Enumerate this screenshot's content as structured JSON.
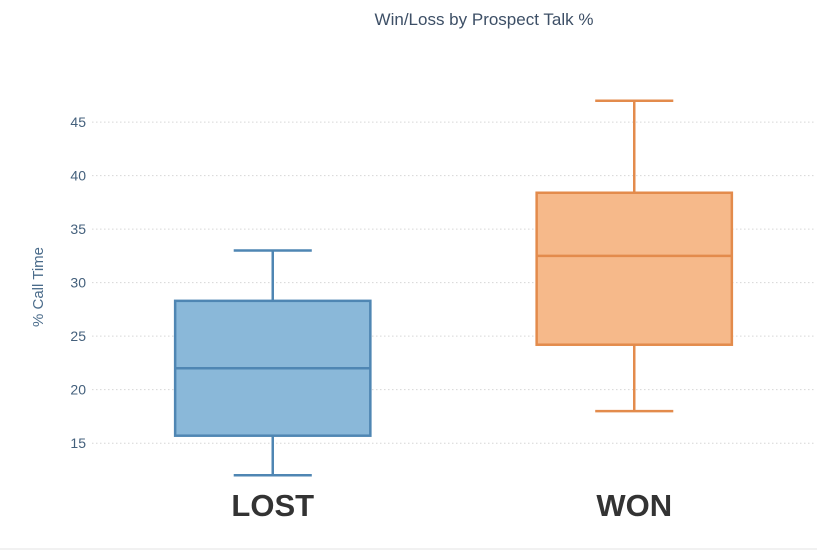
{
  "chart_data": {
    "type": "box",
    "title": "Win/Loss by Prospect Talk %",
    "xlabel": "",
    "ylabel": "% Call Time",
    "ylim": [
      11,
      48
    ],
    "yticks": [
      15,
      20,
      25,
      30,
      35,
      40,
      45
    ],
    "grid": true,
    "categories": [
      "LOST",
      "WON"
    ],
    "boxes": [
      {
        "category": "LOST",
        "min": 12,
        "q1": 15.7,
        "median": 22,
        "q3": 28.3,
        "max": 33,
        "fill": "#8ab8d9",
        "stroke": "#4f86b3"
      },
      {
        "category": "WON",
        "min": 18,
        "q1": 24.2,
        "median": 32.5,
        "q3": 38.4,
        "max": 47,
        "fill": "#f6b98a",
        "stroke": "#e38b4c"
      }
    ]
  }
}
